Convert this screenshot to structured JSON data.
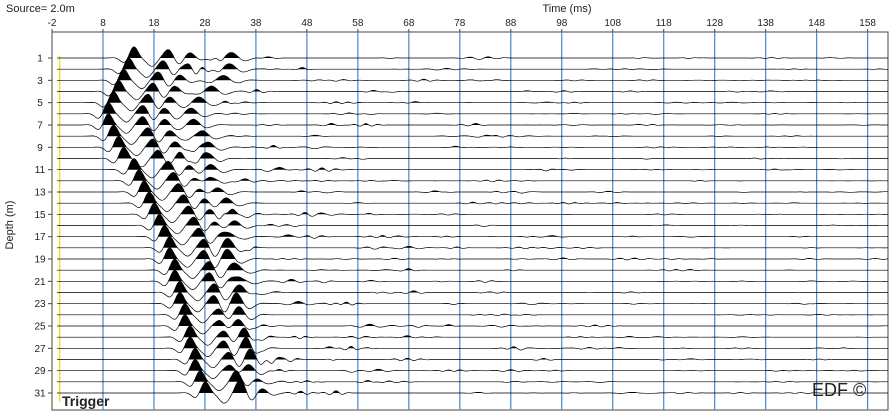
{
  "chart_data": {
    "type": "line",
    "header_left": "Source= 2.0m",
    "xlabel": "Time (ms)",
    "ylabel": "Depth (m)",
    "xlim": [
      -2,
      162
    ],
    "x_ticks": [
      -2,
      8,
      18,
      28,
      38,
      48,
      58,
      68,
      78,
      88,
      98,
      108,
      118,
      128,
      138,
      148,
      158
    ],
    "y_ticks": [
      1,
      3,
      5,
      7,
      9,
      11,
      13,
      15,
      17,
      19,
      21,
      23,
      25,
      27,
      29,
      31
    ],
    "depths": [
      1,
      2,
      3,
      4,
      5,
      6,
      7,
      8,
      9,
      10,
      11,
      12,
      13,
      14,
      15,
      16,
      17,
      18,
      19,
      20,
      21,
      22,
      23,
      24,
      25,
      26,
      27,
      28,
      29,
      30,
      31
    ],
    "first_arrival_ms": [
      14,
      13,
      12,
      11,
      10,
      9,
      9,
      10,
      11,
      12,
      14,
      15,
      16,
      17,
      18,
      19,
      20,
      21,
      21,
      22,
      22,
      23,
      23,
      24,
      24,
      25,
      25,
      26,
      26,
      27,
      28
    ],
    "grid": {
      "vertical": true,
      "color": "#4a86c8"
    },
    "trigger_line": {
      "time_ms": -0.5,
      "color": "#e8e23a"
    },
    "trace_fill": "positive lobes filled black",
    "annotations": {
      "trigger": "Trigger",
      "watermark": "EDF ©"
    }
  }
}
